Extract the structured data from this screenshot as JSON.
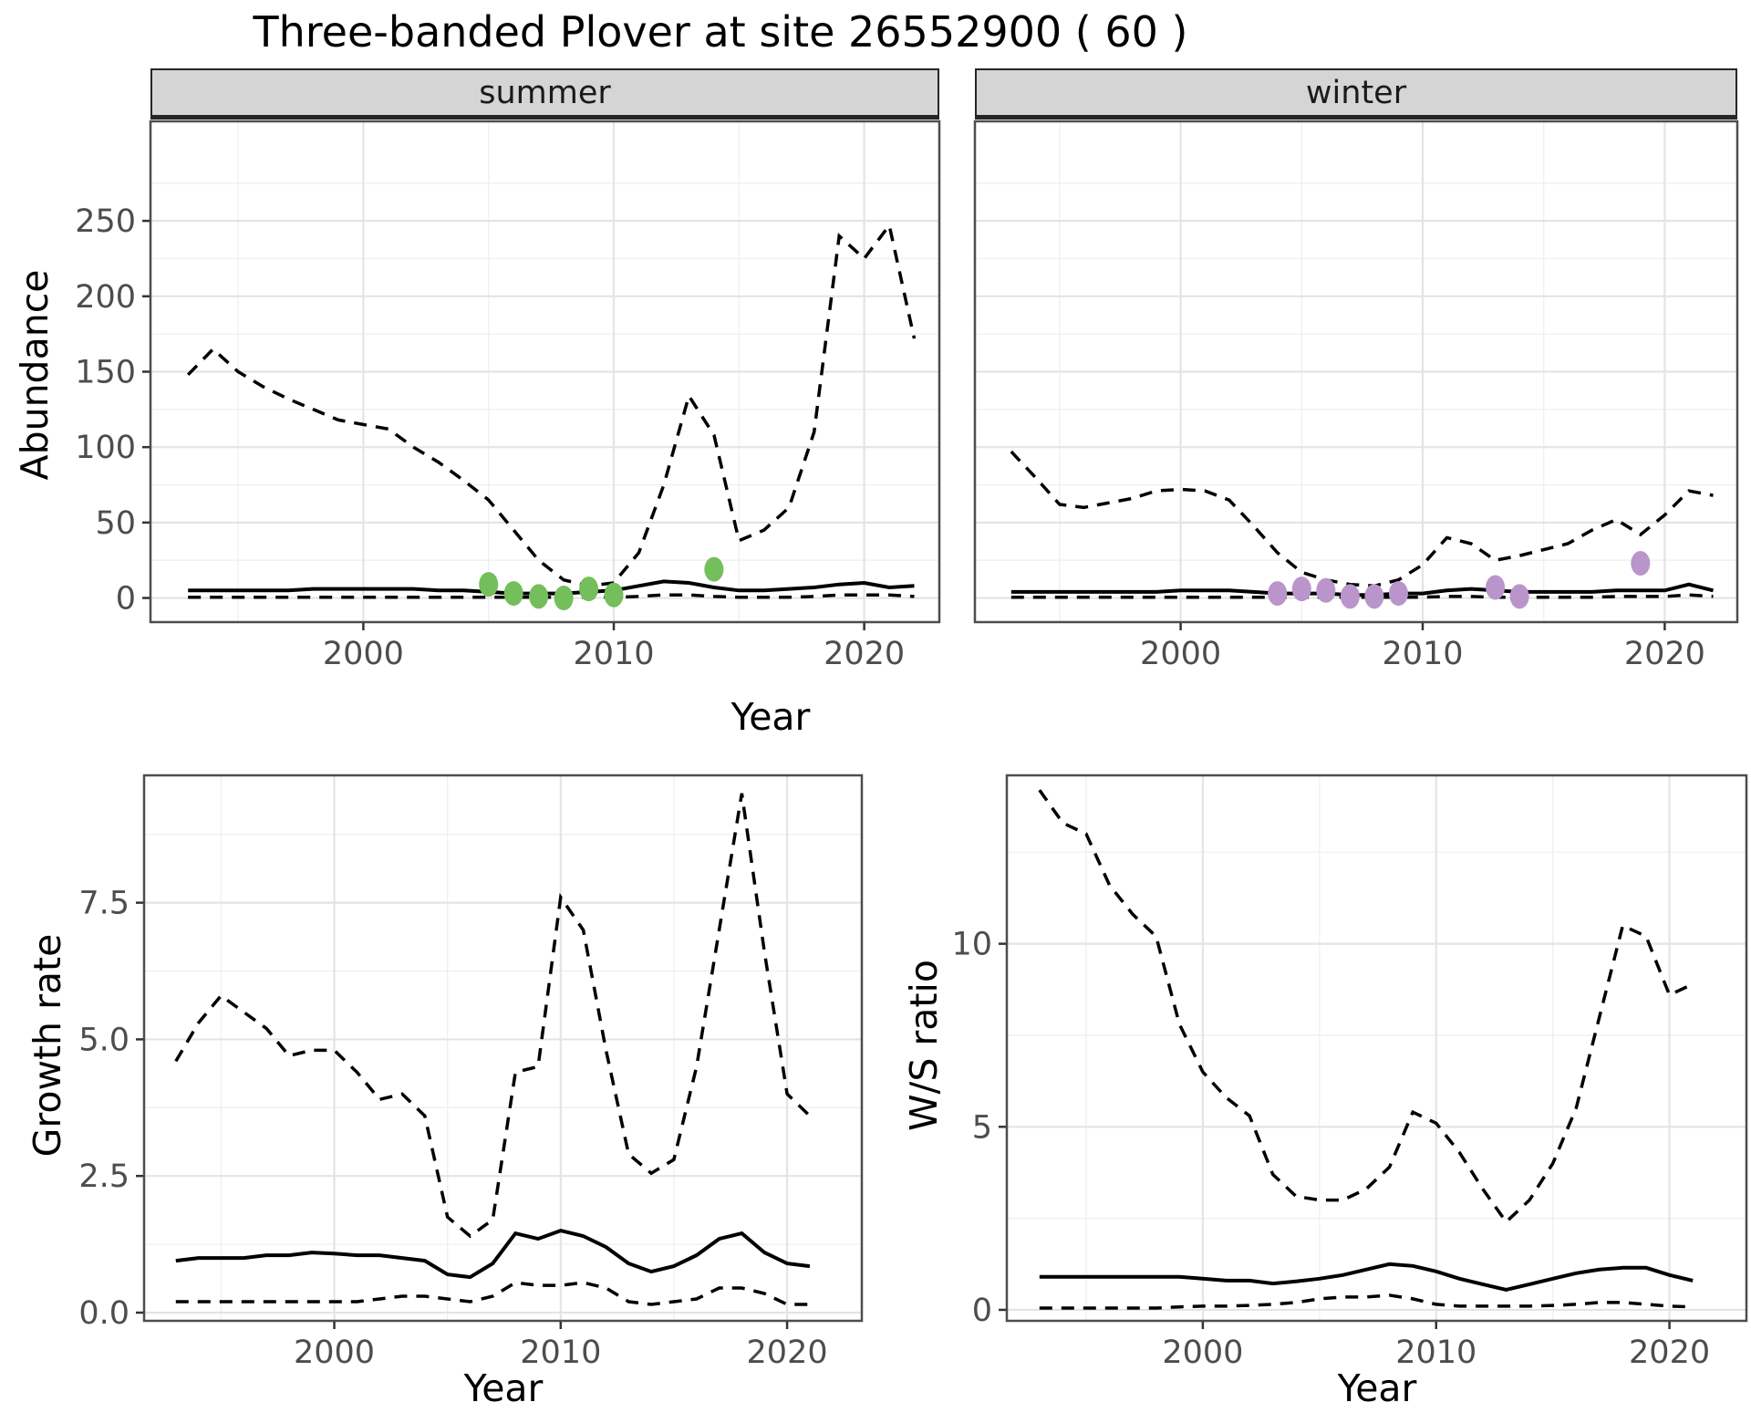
{
  "title": "Three-banded Plover at site 26552900 ( 60 )",
  "facets": {
    "summer": "summer",
    "winter": "winter"
  },
  "axis_titles": {
    "abundance": "Abundance",
    "year": "Year",
    "growth_rate": "Growth rate",
    "ws_ratio": "W/S ratio"
  },
  "colors": {
    "summer_points": "#74BE5B",
    "winter_points": "#B995CC",
    "line": "#000000",
    "strip_bg": "#D5D5D5",
    "grid_major": "#E4E4E4",
    "grid_minor": "#EFEFEF",
    "panel_border": "#4D4D4D",
    "tick_text": "#4D4D4D"
  },
  "chart_data": [
    {
      "id": "abundance-summer",
      "type": "line",
      "facet": "summer",
      "ylabel": "Abundance",
      "xlabel": "Year",
      "xlim": [
        1991.5,
        2023.0
      ],
      "ylim": [
        -16,
        316
      ],
      "x_ticks": [
        2000,
        2010,
        2020
      ],
      "x_tick_labels": [
        "2000",
        "2010",
        "2020"
      ],
      "x_minor": [
        1995,
        2005,
        2015
      ],
      "y_ticks": [
        0,
        50,
        100,
        150,
        200,
        250
      ],
      "y_tick_labels": [
        "0",
        "50",
        "100",
        "150",
        "200",
        "250"
      ],
      "y_minor": [
        25,
        75,
        125,
        175,
        225,
        275
      ],
      "years": [
        1993,
        1994,
        1995,
        1996,
        1997,
        1998,
        1999,
        2000,
        2001,
        2002,
        2003,
        2004,
        2005,
        2006,
        2007,
        2008,
        2009,
        2010,
        2011,
        2012,
        2013,
        2014,
        2015,
        2016,
        2017,
        2018,
        2019,
        2020,
        2021,
        2022
      ],
      "series": [
        {
          "name": "upper-ci",
          "style": "dashed",
          "values": [
            148,
            165,
            150,
            140,
            132,
            125,
            118,
            115,
            112,
            100,
            90,
            78,
            65,
            45,
            25,
            12,
            8,
            10,
            30,
            75,
            134,
            108,
            38,
            45,
            60,
            110,
            240,
            225,
            247,
            172
          ]
        },
        {
          "name": "median",
          "style": "solid",
          "values": [
            5,
            5,
            5,
            5,
            5,
            6,
            6,
            6,
            6,
            6,
            5,
            5,
            4,
            3,
            3,
            3,
            4,
            5,
            8,
            11,
            10,
            7,
            5,
            5,
            6,
            7,
            9,
            10,
            7,
            8
          ]
        },
        {
          "name": "lower-ci",
          "style": "dashed",
          "values": [
            0.5,
            0.5,
            0.5,
            0.5,
            0.5,
            0.5,
            0.5,
            0.5,
            0.5,
            0.5,
            0.5,
            0.5,
            0.5,
            0.5,
            0.5,
            0.5,
            0.5,
            0.5,
            1,
            2,
            2,
            1,
            0.5,
            0.5,
            0.5,
            1,
            2,
            2,
            2,
            1
          ]
        }
      ],
      "points": {
        "color_key": "summer_points",
        "data": [
          [
            2005,
            9
          ],
          [
            2006,
            3
          ],
          [
            2007,
            1
          ],
          [
            2008,
            0
          ],
          [
            2009,
            6
          ],
          [
            2010,
            2
          ],
          [
            2014,
            19
          ]
        ]
      }
    },
    {
      "id": "abundance-winter",
      "type": "line",
      "facet": "winter",
      "ylabel": "Abundance",
      "xlabel": "Year",
      "xlim": [
        1991.5,
        2023.0
      ],
      "ylim": [
        -16,
        316
      ],
      "x_ticks": [
        2000,
        2010,
        2020
      ],
      "x_tick_labels": [
        "2000",
        "2010",
        "2020"
      ],
      "x_minor": [
        1995,
        2005,
        2015
      ],
      "y_ticks": [
        0,
        50,
        100,
        150,
        200,
        250
      ],
      "y_tick_labels": [],
      "y_minor": [
        25,
        75,
        125,
        175,
        225,
        275
      ],
      "years": [
        1993,
        1994,
        1995,
        1996,
        1997,
        1998,
        1999,
        2000,
        2001,
        2002,
        2003,
        2004,
        2005,
        2006,
        2007,
        2008,
        2009,
        2010,
        2011,
        2012,
        2013,
        2014,
        2015,
        2016,
        2017,
        2018,
        2019,
        2020,
        2021,
        2022
      ],
      "series": [
        {
          "name": "upper-ci",
          "style": "dashed",
          "values": [
            97,
            80,
            62,
            60,
            63,
            66,
            71,
            72,
            71,
            65,
            48,
            30,
            17,
            12,
            9,
            8,
            12,
            22,
            40,
            36,
            25,
            28,
            32,
            36,
            45,
            52,
            42,
            55,
            71,
            68
          ]
        },
        {
          "name": "median",
          "style": "solid",
          "values": [
            4,
            4,
            4,
            4,
            4,
            4,
            4,
            5,
            5,
            5,
            4,
            3,
            3,
            3,
            2,
            2,
            3,
            3,
            5,
            6,
            5,
            4,
            4,
            4,
            4,
            5,
            5,
            5,
            9,
            5
          ]
        },
        {
          "name": "lower-ci",
          "style": "dashed",
          "values": [
            0.5,
            0.5,
            0.5,
            0.5,
            0.5,
            0.5,
            0.5,
            0.5,
            0.5,
            0.5,
            0.5,
            0.5,
            0.5,
            0.5,
            0.5,
            0.5,
            0.5,
            0.5,
            1,
            1,
            0.5,
            0.5,
            0.5,
            0.5,
            0.5,
            1,
            1,
            1,
            2,
            1
          ]
        }
      ],
      "points": {
        "color_key": "winter_points",
        "data": [
          [
            2004,
            3
          ],
          [
            2005,
            6
          ],
          [
            2006,
            5
          ],
          [
            2007,
            1
          ],
          [
            2008,
            1
          ],
          [
            2009,
            3
          ],
          [
            2013,
            7
          ],
          [
            2014,
            1
          ],
          [
            2019,
            23
          ]
        ]
      }
    },
    {
      "id": "growth-rate",
      "type": "line",
      "facet": null,
      "ylabel": "Growth rate",
      "xlabel": "Year",
      "xlim": [
        1991.6,
        2023.3
      ],
      "ylim": [
        -0.15,
        9.83
      ],
      "x_ticks": [
        2000,
        2010,
        2020
      ],
      "x_tick_labels": [
        "2000",
        "2010",
        "2020"
      ],
      "x_minor": [
        1995,
        2005,
        2015
      ],
      "y_ticks": [
        0,
        2.5,
        5,
        7.5
      ],
      "y_tick_labels": [
        "0.0",
        "2.5",
        "5.0",
        "7.5"
      ],
      "y_minor": [
        1.25,
        3.75,
        6.25,
        8.75
      ],
      "years": [
        1993,
        1994,
        1995,
        1996,
        1997,
        1998,
        1999,
        2000,
        2001,
        2002,
        2003,
        2004,
        2005,
        2006,
        2007,
        2008,
        2009,
        2010,
        2011,
        2012,
        2013,
        2014,
        2015,
        2016,
        2017,
        2018,
        2019,
        2020,
        2021
      ],
      "series": [
        {
          "name": "upper-ci",
          "style": "dashed",
          "values": [
            4.6,
            5.3,
            5.8,
            5.5,
            5.2,
            4.7,
            4.8,
            4.8,
            4.4,
            3.9,
            4.0,
            3.6,
            1.75,
            1.4,
            1.7,
            4.4,
            4.5,
            7.6,
            7.0,
            4.8,
            2.9,
            2.55,
            2.8,
            4.5,
            7.0,
            9.5,
            6.6,
            4.0,
            3.6
          ]
        },
        {
          "name": "median",
          "style": "solid",
          "values": [
            0.95,
            1.0,
            1.0,
            1.0,
            1.05,
            1.05,
            1.1,
            1.08,
            1.05,
            1.05,
            1.0,
            0.95,
            0.7,
            0.65,
            0.9,
            1.45,
            1.35,
            1.5,
            1.4,
            1.2,
            0.9,
            0.75,
            0.85,
            1.05,
            1.35,
            1.45,
            1.1,
            0.9,
            0.85
          ]
        },
        {
          "name": "lower-ci",
          "style": "dashed",
          "values": [
            0.2,
            0.2,
            0.2,
            0.2,
            0.2,
            0.2,
            0.2,
            0.2,
            0.2,
            0.25,
            0.3,
            0.3,
            0.25,
            0.2,
            0.3,
            0.55,
            0.5,
            0.5,
            0.55,
            0.45,
            0.2,
            0.15,
            0.2,
            0.25,
            0.45,
            0.45,
            0.35,
            0.15,
            0.15
          ]
        }
      ],
      "points": null
    },
    {
      "id": "ws-ratio",
      "type": "line",
      "facet": null,
      "ylabel": "W/S ratio",
      "xlabel": "Year",
      "xlim": [
        1991.6,
        2023.3
      ],
      "ylim": [
        -0.3,
        14.6
      ],
      "x_ticks": [
        2000,
        2010,
        2020
      ],
      "x_tick_labels": [
        "2000",
        "2010",
        "2020"
      ],
      "x_minor": [
        1995,
        2005,
        2015
      ],
      "y_ticks": [
        0,
        5,
        10
      ],
      "y_tick_labels": [
        "0",
        "5",
        "10"
      ],
      "y_minor": [
        2.5,
        7.5,
        12.5
      ],
      "years": [
        1993,
        1994,
        1995,
        1996,
        1997,
        1998,
        1999,
        2000,
        2001,
        2002,
        2003,
        2004,
        2005,
        2006,
        2007,
        2008,
        2009,
        2010,
        2011,
        2012,
        2013,
        2014,
        2015,
        2016,
        2017,
        2018,
        2019,
        2020,
        2021
      ],
      "series": [
        {
          "name": "upper-ci",
          "style": "dashed",
          "values": [
            14.2,
            13.3,
            13.0,
            11.6,
            10.8,
            10.2,
            7.8,
            6.5,
            5.8,
            5.3,
            3.7,
            3.1,
            3.0,
            3.0,
            3.3,
            3.9,
            5.4,
            5.1,
            4.3,
            3.3,
            2.4,
            3.0,
            4.0,
            5.5,
            8.0,
            10.5,
            10.2,
            8.6,
            8.9
          ]
        },
        {
          "name": "median",
          "style": "solid",
          "values": [
            0.9,
            0.9,
            0.9,
            0.9,
            0.9,
            0.9,
            0.9,
            0.85,
            0.8,
            0.8,
            0.72,
            0.78,
            0.85,
            0.95,
            1.1,
            1.25,
            1.2,
            1.05,
            0.85,
            0.7,
            0.55,
            0.7,
            0.85,
            1.0,
            1.1,
            1.15,
            1.15,
            0.95,
            0.8
          ]
        },
        {
          "name": "lower-ci",
          "style": "dashed",
          "values": [
            0.05,
            0.05,
            0.05,
            0.05,
            0.05,
            0.05,
            0.08,
            0.1,
            0.1,
            0.12,
            0.15,
            0.2,
            0.3,
            0.35,
            0.35,
            0.4,
            0.3,
            0.15,
            0.1,
            0.1,
            0.1,
            0.1,
            0.12,
            0.15,
            0.2,
            0.2,
            0.15,
            0.1,
            0.08
          ]
        }
      ],
      "points": null
    }
  ]
}
